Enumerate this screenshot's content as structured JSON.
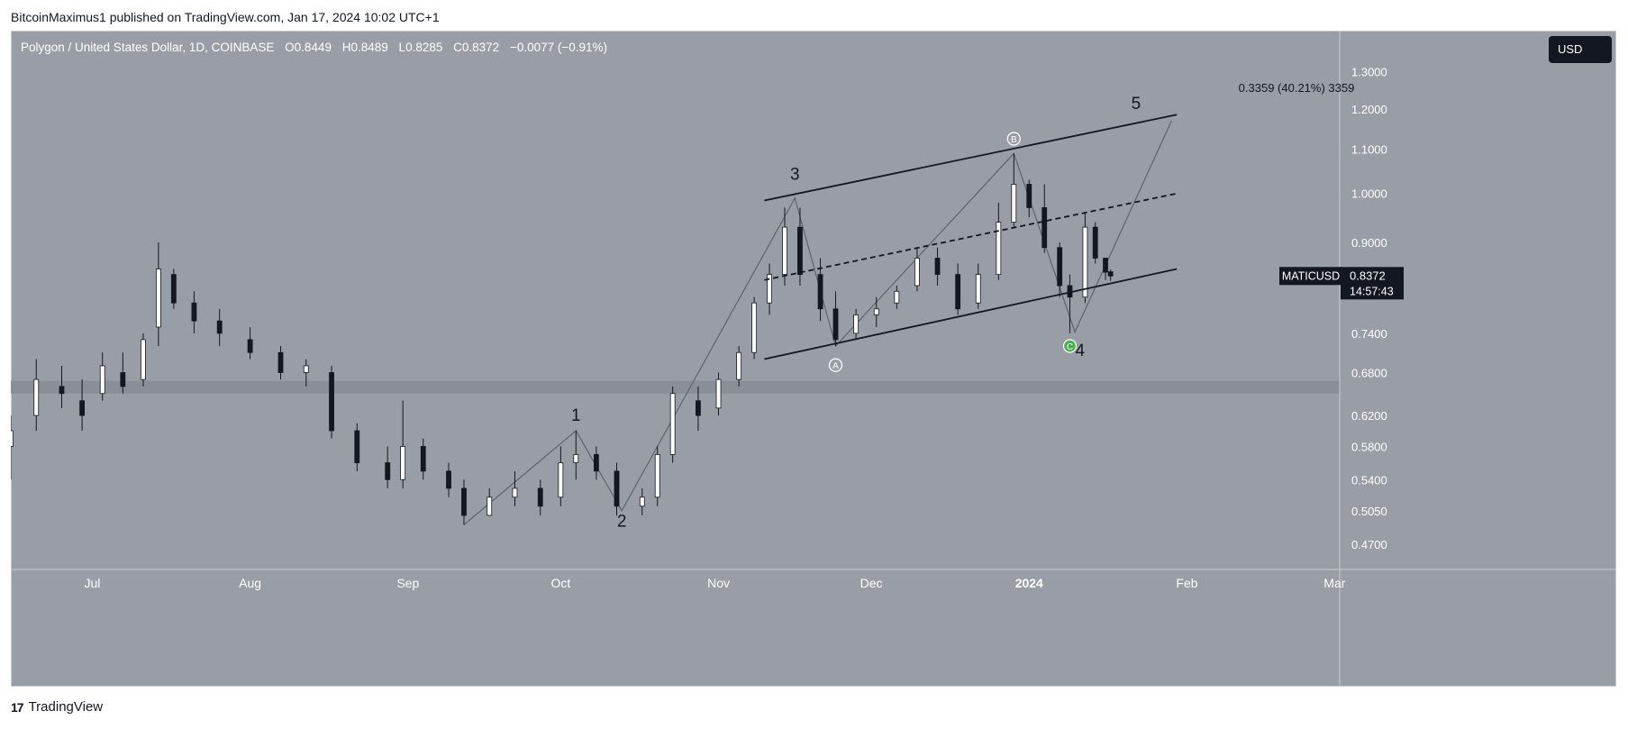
{
  "header": {
    "published_text": "BitcoinMaximus1 published on TradingView.com, Jan 17, 2024 10:02 UTC+1"
  },
  "symbol": {
    "title": "Polygon / United States Dollar, 1D, COINBASE",
    "o_label": "O",
    "o_value": "0.8449",
    "h_label": "H",
    "h_value": "0.8489",
    "l_label": "L",
    "l_value": "0.8285",
    "c_label": "C",
    "c_value": "0.8372",
    "change": "−0.0077 (−0.91%)"
  },
  "currency_button": "USD",
  "price_tag": {
    "ticker": "MATICUSD",
    "price": "0.8372",
    "countdown": "14:57:43"
  },
  "footer": {
    "logo_text": "TradingView"
  },
  "colors": {
    "background": "#999da6",
    "candle_up": "#ffffff",
    "candle_down": "#131722",
    "line": "#131722"
  },
  "chart_data": {
    "type": "candlestick",
    "title": "Polygon / United States Dollar, 1D, COINBASE",
    "y_scale": "log",
    "ylim": [
      0.445,
      1.42
    ],
    "y_ticks": [
      "0.4700",
      "0.5050",
      "0.5400",
      "0.5800",
      "0.6200",
      "0.6800",
      "0.7400",
      "0.9000",
      "1.0000",
      "1.1000",
      "1.2000",
      "1.3000"
    ],
    "x_ticks": [
      {
        "label": "Jul",
        "date": "2023-07-01"
      },
      {
        "label": "Aug",
        "date": "2023-08-01"
      },
      {
        "label": "Sep",
        "date": "2023-09-01"
      },
      {
        "label": "Oct",
        "date": "2023-10-01"
      },
      {
        "label": "Nov",
        "date": "2023-11-01"
      },
      {
        "label": "Dec",
        "date": "2023-12-01"
      },
      {
        "label": "2024",
        "date": "2024-01-01"
      },
      {
        "label": "Feb",
        "date": "2024-02-01"
      },
      {
        "label": "Mar",
        "date": "2024-03-01"
      }
    ],
    "x_range": [
      "2023-06-15",
      "2024-03-02"
    ],
    "last_price": 0.8372,
    "series": [
      {
        "date": "2023-06-15",
        "open": 0.58,
        "high": 0.62,
        "low": 0.54,
        "close": 0.6
      },
      {
        "date": "2023-06-20",
        "open": 0.62,
        "high": 0.7,
        "low": 0.6,
        "close": 0.67
      },
      {
        "date": "2023-06-25",
        "open": 0.66,
        "high": 0.69,
        "low": 0.63,
        "close": 0.65
      },
      {
        "date": "2023-06-29",
        "open": 0.64,
        "high": 0.67,
        "low": 0.6,
        "close": 0.62
      },
      {
        "date": "2023-07-03",
        "open": 0.65,
        "high": 0.71,
        "low": 0.64,
        "close": 0.69
      },
      {
        "date": "2023-07-07",
        "open": 0.68,
        "high": 0.71,
        "low": 0.65,
        "close": 0.66
      },
      {
        "date": "2023-07-11",
        "open": 0.67,
        "high": 0.74,
        "low": 0.66,
        "close": 0.73
      },
      {
        "date": "2023-07-14",
        "open": 0.75,
        "high": 0.9,
        "low": 0.72,
        "close": 0.85
      },
      {
        "date": "2023-07-17",
        "open": 0.84,
        "high": 0.85,
        "low": 0.78,
        "close": 0.79
      },
      {
        "date": "2023-07-21",
        "open": 0.79,
        "high": 0.81,
        "low": 0.74,
        "close": 0.76
      },
      {
        "date": "2023-07-26",
        "open": 0.76,
        "high": 0.78,
        "low": 0.72,
        "close": 0.74
      },
      {
        "date": "2023-08-01",
        "open": 0.73,
        "high": 0.75,
        "low": 0.7,
        "close": 0.71
      },
      {
        "date": "2023-08-07",
        "open": 0.71,
        "high": 0.72,
        "low": 0.67,
        "close": 0.68
      },
      {
        "date": "2023-08-12",
        "open": 0.68,
        "high": 0.7,
        "low": 0.66,
        "close": 0.69
      },
      {
        "date": "2023-08-17",
        "open": 0.68,
        "high": 0.69,
        "low": 0.59,
        "close": 0.6
      },
      {
        "date": "2023-08-22",
        "open": 0.6,
        "high": 0.61,
        "low": 0.55,
        "close": 0.56
      },
      {
        "date": "2023-08-28",
        "open": 0.56,
        "high": 0.58,
        "low": 0.53,
        "close": 0.54
      },
      {
        "date": "2023-08-31",
        "open": 0.54,
        "high": 0.64,
        "low": 0.53,
        "close": 0.58
      },
      {
        "date": "2023-09-04",
        "open": 0.58,
        "high": 0.59,
        "low": 0.54,
        "close": 0.55
      },
      {
        "date": "2023-09-09",
        "open": 0.55,
        "high": 0.56,
        "low": 0.52,
        "close": 0.53
      },
      {
        "date": "2023-09-12",
        "open": 0.53,
        "high": 0.54,
        "low": 0.49,
        "close": 0.5
      },
      {
        "date": "2023-09-17",
        "open": 0.5,
        "high": 0.53,
        "low": 0.5,
        "close": 0.52
      },
      {
        "date": "2023-09-22",
        "open": 0.52,
        "high": 0.55,
        "low": 0.51,
        "close": 0.53
      },
      {
        "date": "2023-09-27",
        "open": 0.53,
        "high": 0.54,
        "low": 0.5,
        "close": 0.51
      },
      {
        "date": "2023-10-01",
        "open": 0.52,
        "high": 0.58,
        "low": 0.51,
        "close": 0.56
      },
      {
        "date": "2023-10-04",
        "open": 0.56,
        "high": 0.6,
        "low": 0.54,
        "close": 0.57
      },
      {
        "date": "2023-10-08",
        "open": 0.57,
        "high": 0.58,
        "low": 0.54,
        "close": 0.55
      },
      {
        "date": "2023-10-12",
        "open": 0.55,
        "high": 0.56,
        "low": 0.5,
        "close": 0.51
      },
      {
        "date": "2023-10-17",
        "open": 0.51,
        "high": 0.53,
        "low": 0.5,
        "close": 0.52
      },
      {
        "date": "2023-10-20",
        "open": 0.52,
        "high": 0.58,
        "low": 0.51,
        "close": 0.57
      },
      {
        "date": "2023-10-23",
        "open": 0.57,
        "high": 0.66,
        "low": 0.56,
        "close": 0.65
      },
      {
        "date": "2023-10-28",
        "open": 0.64,
        "high": 0.66,
        "low": 0.6,
        "close": 0.62
      },
      {
        "date": "2023-11-01",
        "open": 0.63,
        "high": 0.68,
        "low": 0.62,
        "close": 0.67
      },
      {
        "date": "2023-11-05",
        "open": 0.67,
        "high": 0.72,
        "low": 0.66,
        "close": 0.71
      },
      {
        "date": "2023-11-08",
        "open": 0.71,
        "high": 0.8,
        "low": 0.7,
        "close": 0.79
      },
      {
        "date": "2023-11-11",
        "open": 0.79,
        "high": 0.86,
        "low": 0.77,
        "close": 0.84
      },
      {
        "date": "2023-11-14",
        "open": 0.84,
        "high": 0.97,
        "low": 0.82,
        "close": 0.93
      },
      {
        "date": "2023-11-17",
        "open": 0.93,
        "high": 0.97,
        "low": 0.82,
        "close": 0.84
      },
      {
        "date": "2023-11-21",
        "open": 0.84,
        "high": 0.87,
        "low": 0.76,
        "close": 0.78
      },
      {
        "date": "2023-11-24",
        "open": 0.78,
        "high": 0.81,
        "low": 0.72,
        "close": 0.73
      },
      {
        "date": "2023-11-28",
        "open": 0.74,
        "high": 0.78,
        "low": 0.73,
        "close": 0.77
      },
      {
        "date": "2023-12-02",
        "open": 0.77,
        "high": 0.8,
        "low": 0.75,
        "close": 0.78
      },
      {
        "date": "2023-12-06",
        "open": 0.79,
        "high": 0.82,
        "low": 0.78,
        "close": 0.81
      },
      {
        "date": "2023-12-10",
        "open": 0.82,
        "high": 0.89,
        "low": 0.81,
        "close": 0.87
      },
      {
        "date": "2023-12-14",
        "open": 0.87,
        "high": 0.89,
        "low": 0.82,
        "close": 0.84
      },
      {
        "date": "2023-12-18",
        "open": 0.84,
        "high": 0.86,
        "low": 0.77,
        "close": 0.78
      },
      {
        "date": "2023-12-22",
        "open": 0.79,
        "high": 0.86,
        "low": 0.78,
        "close": 0.84
      },
      {
        "date": "2023-12-26",
        "open": 0.84,
        "high": 0.98,
        "low": 0.83,
        "close": 0.94
      },
      {
        "date": "2023-12-29",
        "open": 0.94,
        "high": 1.09,
        "low": 0.93,
        "close": 1.02
      },
      {
        "date": "2024-01-01",
        "open": 1.02,
        "high": 1.03,
        "low": 0.95,
        "close": 0.97
      },
      {
        "date": "2024-01-04",
        "open": 0.97,
        "high": 1.02,
        "low": 0.88,
        "close": 0.89
      },
      {
        "date": "2024-01-07",
        "open": 0.89,
        "high": 0.9,
        "low": 0.8,
        "close": 0.82
      },
      {
        "date": "2024-01-09",
        "open": 0.82,
        "high": 0.84,
        "low": 0.74,
        "close": 0.8
      },
      {
        "date": "2024-01-12",
        "open": 0.8,
        "high": 0.96,
        "low": 0.79,
        "close": 0.93
      },
      {
        "date": "2024-01-14",
        "open": 0.93,
        "high": 0.94,
        "low": 0.86,
        "close": 0.87
      },
      {
        "date": "2024-01-16",
        "open": 0.87,
        "high": 0.87,
        "low": 0.83,
        "close": 0.844
      },
      {
        "date": "2024-01-17",
        "open": 0.8449,
        "high": 0.8489,
        "low": 0.8285,
        "close": 0.8372
      }
    ],
    "annotations": {
      "wave_labels": [
        {
          "text": "1",
          "date": "2023-10-04",
          "price": 0.613
        },
        {
          "text": "2",
          "date": "2023-10-13",
          "price": 0.488
        },
        {
          "text": "3",
          "date": "2023-11-16",
          "price": 1.03
        },
        {
          "text": "4",
          "date": "2024-01-11",
          "price": 0.705
        },
        {
          "text": "5",
          "date": "2024-01-22",
          "price": 1.2
        },
        {
          "text": "A",
          "date": "2023-11-24",
          "price": 0.691
        },
        {
          "text": "B",
          "date": "2023-12-29",
          "price": 1.125
        },
        {
          "text": "C",
          "date": "2024-01-09",
          "price": 0.72
        }
      ],
      "channel": {
        "upper": [
          {
            "date": "2023-11-10",
            "price": 0.985
          },
          {
            "date": "2024-01-30",
            "price": 1.185
          }
        ],
        "middle": [
          {
            "date": "2023-11-10",
            "price": 0.83
          },
          {
            "date": "2024-01-30",
            "price": 1.0
          }
        ],
        "lower": [
          {
            "date": "2023-11-10",
            "price": 0.7
          },
          {
            "date": "2024-01-30",
            "price": 0.85
          }
        ]
      },
      "support_zone": [
        0.65,
        0.668
      ],
      "measurement_label": "0.3359 (40.21%) 3359",
      "wave_path": [
        {
          "date": "2023-09-12",
          "price": 0.49
        },
        {
          "date": "2023-10-04",
          "price": 0.6
        },
        {
          "date": "2023-10-13",
          "price": 0.505
        },
        {
          "date": "2023-11-16",
          "price": 0.99
        },
        {
          "date": "2023-11-24",
          "price": 0.72
        },
        {
          "date": "2023-12-29",
          "price": 1.09
        },
        {
          "date": "2024-01-10",
          "price": 0.742
        },
        {
          "date": "2024-01-29",
          "price": 1.17
        }
      ]
    }
  }
}
